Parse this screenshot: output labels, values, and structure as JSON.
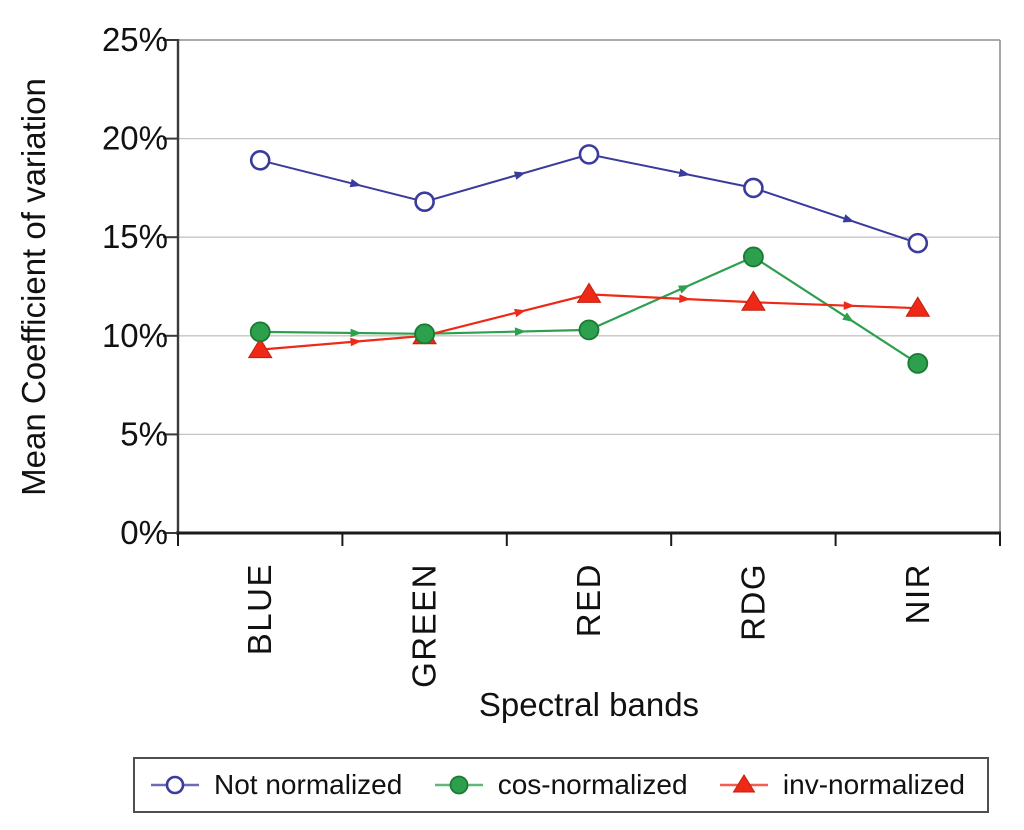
{
  "chart_data": {
    "type": "line",
    "title": "",
    "xlabel": "Spectral bands",
    "ylabel": "Mean Coefficient of variation",
    "categories": [
      "BLUE",
      "GREEN",
      "RED",
      "RDG",
      "NIR"
    ],
    "y_tick_labels_top_to_bottom": [
      "25%",
      "20%",
      "15%",
      "10%",
      "5%",
      "0%"
    ],
    "ylim": [
      0,
      25
    ],
    "y_tick_step": 5,
    "y_unit": "%",
    "grid": true,
    "legend_position": "bottom",
    "series": [
      {
        "name": "Not normalized",
        "marker": "open-circle",
        "color": "#3B3B9D",
        "values": [
          18.9,
          16.8,
          19.2,
          17.5,
          14.7
        ]
      },
      {
        "name": "cos-normalized",
        "marker": "filled-circle",
        "color": "#2DA04E",
        "marker_stroke": "#1A7A33",
        "values": [
          10.2,
          10.1,
          10.3,
          14.0,
          8.6
        ]
      },
      {
        "name": "inv-normalized",
        "marker": "filled-triangle",
        "color": "#EE2917",
        "marker_stroke": "#C41E0E",
        "values": [
          9.3,
          10.0,
          12.1,
          11.7,
          11.4
        ]
      }
    ]
  },
  "colors": {
    "background": "#ffffff",
    "gridline": "#c5c5c5",
    "plot_border": "#8f8f8f",
    "y_axis": "#3a3a3a",
    "x_axis": "#1a1a1a",
    "text": "#111111",
    "legend_border": "#4f4f4f"
  }
}
